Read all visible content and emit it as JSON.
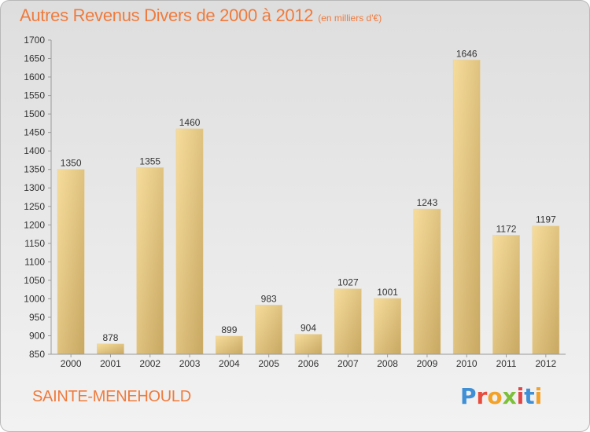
{
  "title": "Autres Revenus Divers de 2000 à 2012",
  "unit": "(en milliers d'€)",
  "commune": "SAINTE-MENEHOULD",
  "logo": {
    "text": "Proxiti",
    "letters": [
      "P",
      "r",
      "o",
      "x",
      "i",
      "t",
      "i"
    ]
  },
  "colors": {
    "title": "#ef7b3d",
    "bar_light": "#f6dc9c",
    "bar_dark": "#c8a862"
  },
  "chart_data": {
    "type": "bar",
    "categories": [
      "2000",
      "2001",
      "2002",
      "2003",
      "2004",
      "2005",
      "2006",
      "2007",
      "2008",
      "2009",
      "2010",
      "2011",
      "2012"
    ],
    "values": [
      1350,
      878,
      1355,
      1460,
      899,
      983,
      904,
      1027,
      1001,
      1243,
      1646,
      1172,
      1197
    ],
    "ylim": [
      850,
      1700
    ],
    "yticks": [
      850,
      900,
      950,
      1000,
      1050,
      1100,
      1150,
      1200,
      1250,
      1300,
      1350,
      1400,
      1450,
      1500,
      1550,
      1600,
      1650,
      1700
    ],
    "grid": false,
    "data_labels": true
  }
}
